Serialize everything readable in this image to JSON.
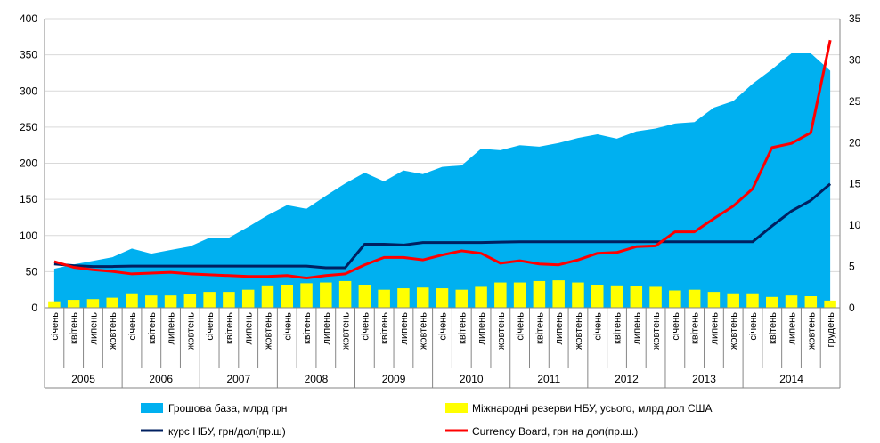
{
  "chart_data": {
    "type": "combo",
    "title": "",
    "xlabel": "",
    "ylabel": "",
    "y_left_lim": [
      0,
      400
    ],
    "y_left_ticks": [
      "0",
      "50",
      "100",
      "150",
      "200",
      "250",
      "300",
      "350",
      "400"
    ],
    "y_right_lim": [
      0,
      35
    ],
    "y_right_ticks": [
      "0",
      "5",
      "10",
      "15",
      "20",
      "25",
      "30",
      "35"
    ],
    "grid": true,
    "legend_position": "bottom",
    "month_labels": [
      "січень",
      "квітень",
      "липень",
      "жовтень",
      "січень",
      "квітень",
      "липень",
      "жовтень",
      "січень",
      "квітень",
      "липень",
      "жовтень",
      "січень",
      "квітень",
      "липень",
      "жовтень",
      "січень",
      "квітень",
      "липень",
      "жовтень",
      "січень",
      "квітень",
      "липень",
      "жовтень",
      "січень",
      "квітень",
      "липень",
      "жовтень",
      "січень",
      "квітень",
      "липень",
      "жовтень",
      "січень",
      "квітень",
      "липень",
      "жовтень",
      "січень",
      "квітень",
      "липень",
      "жовтень",
      "грудень"
    ],
    "years": [
      "2005",
      "2006",
      "2007",
      "2008",
      "2009",
      "2010",
      "2011",
      "2012",
      "2013",
      "2014"
    ],
    "series": [
      {
        "name": "Грошова база, млрд грн",
        "kind": "area",
        "axis": "left",
        "color": "#00B0F0",
        "values": [
          54,
          60,
          65,
          70,
          82,
          75,
          80,
          85,
          97,
          97,
          112,
          128,
          142,
          137,
          155,
          172,
          187,
          175,
          190,
          185,
          195,
          197,
          220,
          218,
          225,
          223,
          228,
          235,
          240,
          234,
          244,
          248,
          255,
          257,
          277,
          286,
          310,
          330,
          352,
          352,
          328
        ]
      },
      {
        "name": "Міжнародні резерви НБУ, усього, млрд дол США",
        "kind": "bar",
        "axis": "left",
        "color": "#FFFF00",
        "values": [
          9,
          11,
          12,
          14,
          20,
          17,
          17,
          19,
          22,
          22,
          25,
          31,
          32,
          34,
          35,
          37,
          32,
          25,
          27,
          28,
          27,
          25,
          29,
          35,
          35,
          37,
          38,
          35,
          32,
          31,
          30,
          29,
          24,
          25,
          22,
          20,
          20,
          15,
          17,
          16,
          10
        ]
      },
      {
        "name": "курс НБУ, грн/дол(пр.ш)",
        "kind": "line",
        "axis": "right",
        "color": "#002060",
        "values": [
          5.3,
          5.1,
          5.0,
          5.0,
          5.05,
          5.05,
          5.05,
          5.05,
          5.05,
          5.05,
          5.05,
          5.05,
          5.05,
          5.05,
          4.85,
          4.85,
          7.7,
          7.7,
          7.6,
          7.9,
          7.9,
          7.9,
          7.9,
          7.95,
          7.99,
          7.99,
          7.99,
          7.99,
          7.99,
          7.99,
          7.99,
          7.99,
          7.99,
          7.99,
          7.99,
          7.99,
          7.99,
          9.9,
          11.7,
          13.0,
          15.0
        ]
      },
      {
        "name": "Currency Board, грн на дол(пр.ш.)",
        "kind": "line",
        "axis": "right",
        "color": "#FF0000",
        "values": [
          5.6,
          4.9,
          4.6,
          4.4,
          4.1,
          4.2,
          4.3,
          4.1,
          4.0,
          3.9,
          3.8,
          3.8,
          3.9,
          3.6,
          3.9,
          4.1,
          5.2,
          6.1,
          6.1,
          5.8,
          6.4,
          6.9,
          6.6,
          5.4,
          5.7,
          5.3,
          5.2,
          5.8,
          6.6,
          6.7,
          7.4,
          7.5,
          9.2,
          9.2,
          10.8,
          12.3,
          14.4,
          19.4,
          19.9,
          21.2,
          32.4
        ]
      }
    ]
  }
}
